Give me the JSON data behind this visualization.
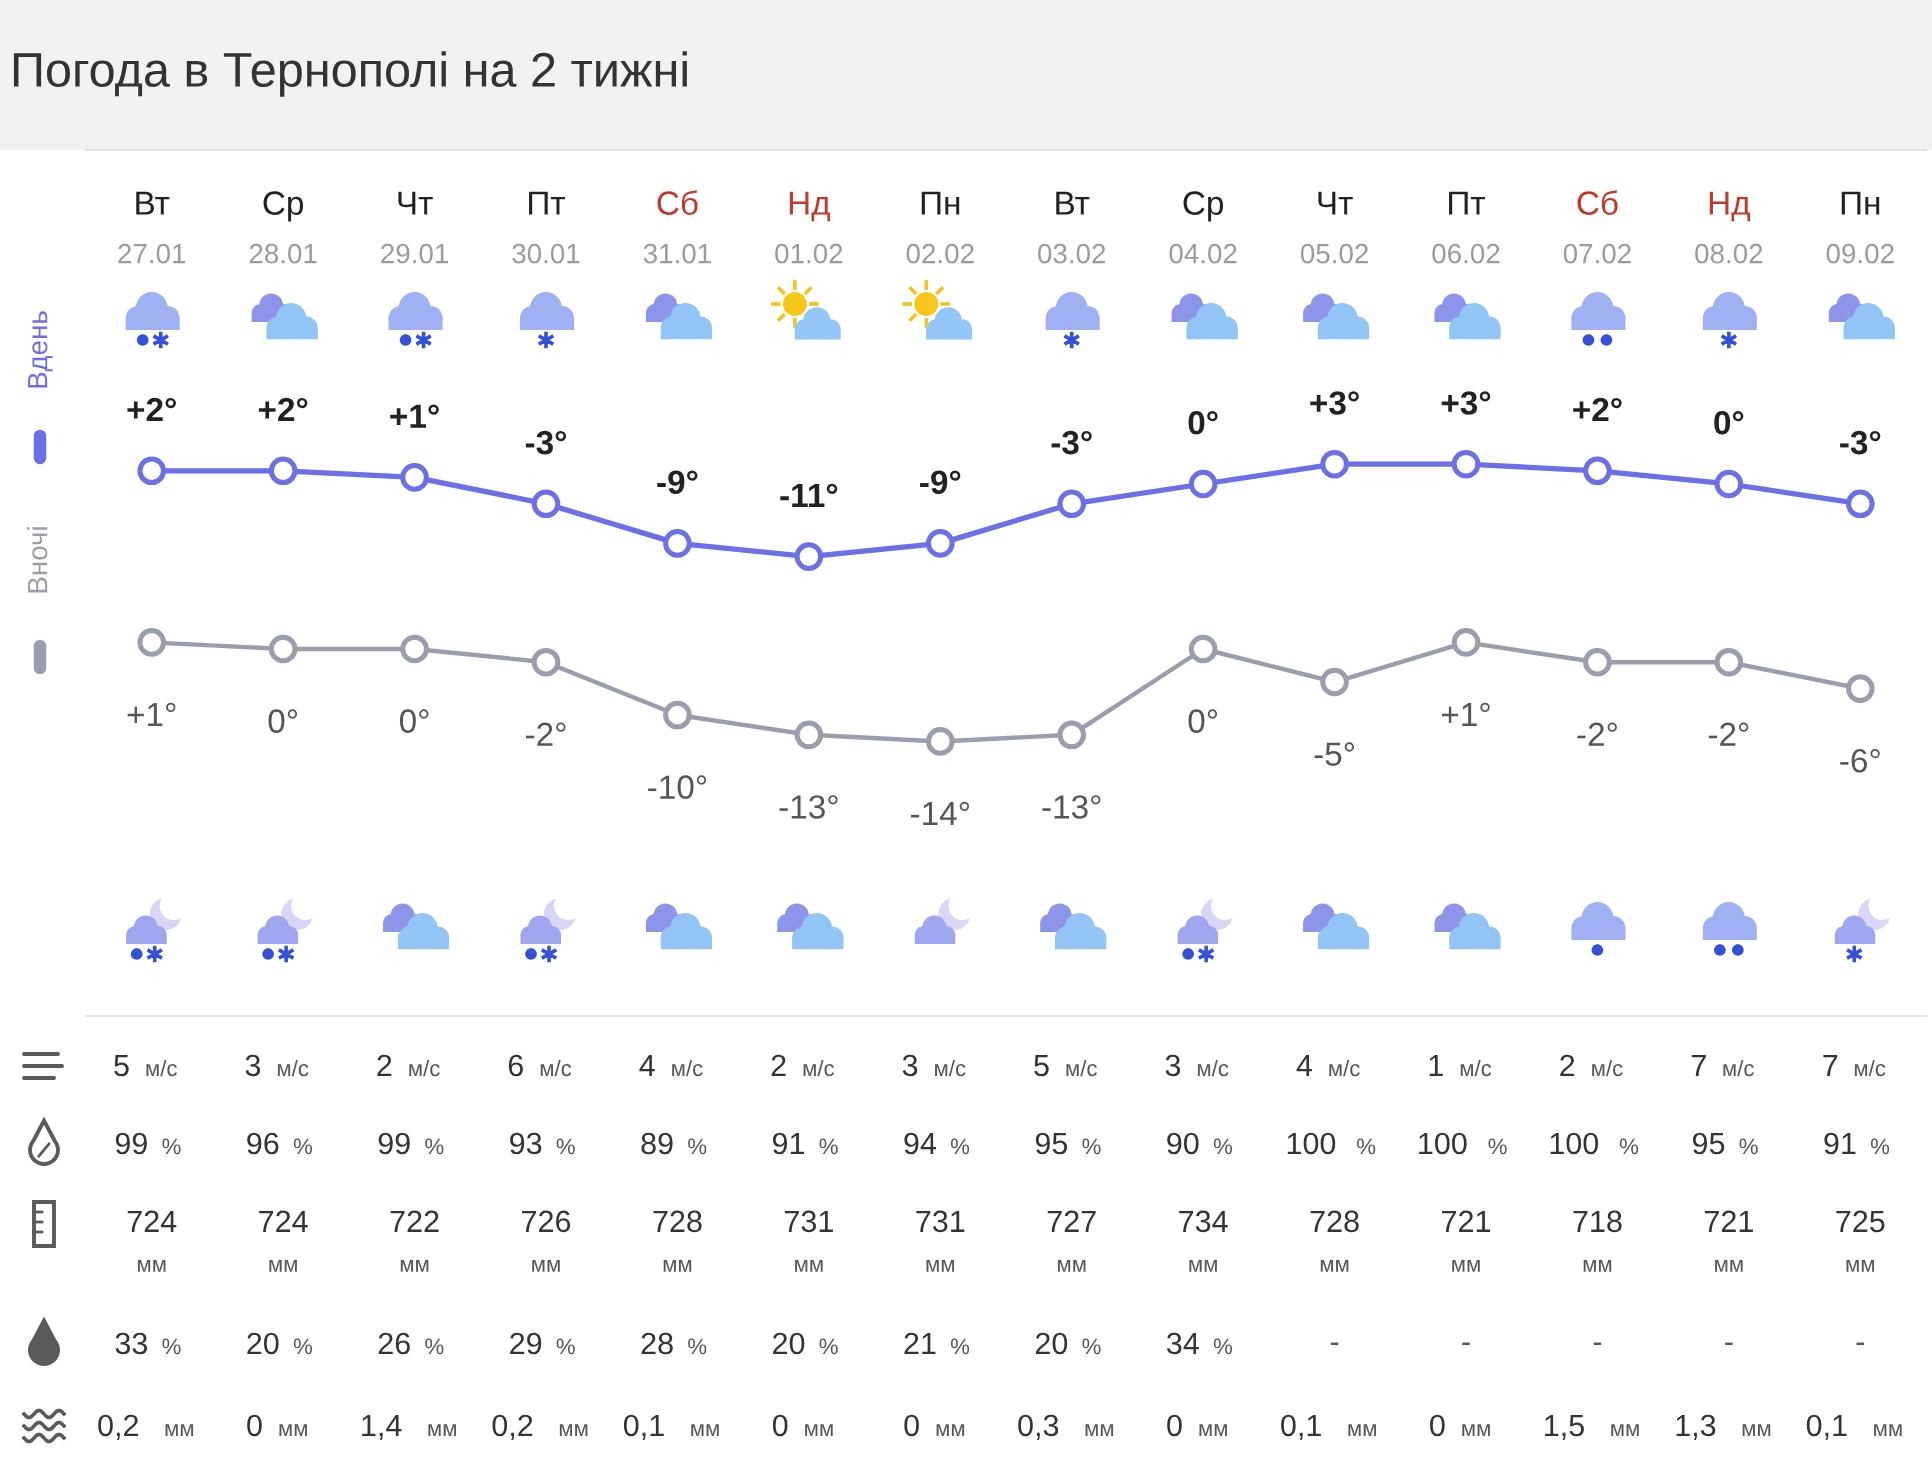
{
  "chart_data": [
    {
      "type": "line",
      "title": "Погода в Тернополі на 2 тижні",
      "categories": [
        "Вт\n27.01",
        "Ср\n28.01",
        "Чт\n29.01",
        "Пт\n30.01",
        "Сб\n31.01",
        "Нд\n01.02",
        "Пн\n02.02",
        "Вт\n03.02",
        "Ср\n04.02",
        "Чт\n05.02",
        "Пт\n06.02",
        "Сб\n07.02",
        "Нд\n08.02",
        "Пн\n09.02"
      ],
      "series": [
        {
          "name": "Вдень",
          "type": "line",
          "color": "#6b6fe8",
          "values": [
            2,
            2,
            1,
            -3,
            -9,
            -11,
            -9,
            -3,
            0,
            3,
            3,
            2,
            0,
            -3
          ],
          "value_labels": [
            "+2°",
            "+2°",
            "+1°",
            "-3°",
            "-9°",
            "-11°",
            "-9°",
            "-3°",
            "0°",
            "+3°",
            "+3°",
            "+2°",
            "0°",
            "-3°"
          ]
        },
        {
          "name": "Вночі",
          "type": "line",
          "color": "#9b9dae",
          "axis": "y2",
          "values": [
            1,
            0,
            0,
            -2,
            -10,
            -13,
            -14,
            -13,
            0,
            -5,
            1,
            -2,
            -2,
            -6
          ],
          "value_labels": [
            "+1°",
            "0°",
            "0°",
            "-2°",
            "-10°",
            "-13°",
            "-14°",
            "-13°",
            "0°",
            "-5°",
            "+1°",
            "-2°",
            "-2°",
            "-6°"
          ]
        }
      ],
      "ylim": [
        -80.6,
        50.6
      ],
      "y2lim": [
        -55.6,
        75.6
      ],
      "tick_labels": "x",
      "marker": "circle",
      "line_style": "solid",
      "legend": "left"
    },
    {
      "type": "other",
      "categories": [
        "5 м/с",
        "3 м/с",
        "2 м/с",
        "6 м/с",
        "4 м/с",
        "2 м/с",
        "3 м/с",
        "5 м/с",
        "3 м/с",
        "4 м/с",
        "1 м/с",
        "2 м/с",
        "7 м/с",
        "7 м/с"
      ]
    },
    {
      "type": "other",
      "categories": [
        "99%",
        "96%",
        "99%",
        "93%",
        "89%",
        "91%",
        "94%",
        "95%",
        "90%",
        "100%",
        "100%",
        "100%",
        "95%",
        "91%"
      ]
    },
    {
      "type": "other",
      "categories": [
        "724\nмм",
        "724\nмм",
        "722\nмм",
        "726\nмм",
        "728\nмм",
        "731\nмм",
        "731\nмм",
        "727\nмм",
        "734\nмм",
        "728\nмм",
        "721\nмм",
        "718\nмм",
        "721\nмм",
        "725\nмм"
      ]
    },
    {
      "type": "other",
      "categories": [
        "33%",
        "20%",
        "26%",
        "29%",
        "28%",
        "20%",
        "21%",
        "20%",
        "34%",
        "-",
        "-",
        "-",
        "-",
        "-"
      ]
    },
    {
      "type": "other",
      "categories": [
        "0,2 мм",
        "0 мм",
        "1,4 мм",
        "0,2 мм",
        "0,1 мм",
        "0 мм",
        "0 мм",
        "0,3 мм",
        "0 мм",
        "0,1 мм",
        "0 мм",
        "1,5 мм",
        "1,3 мм",
        "0,1 мм"
      ]
    }
  ]
}
